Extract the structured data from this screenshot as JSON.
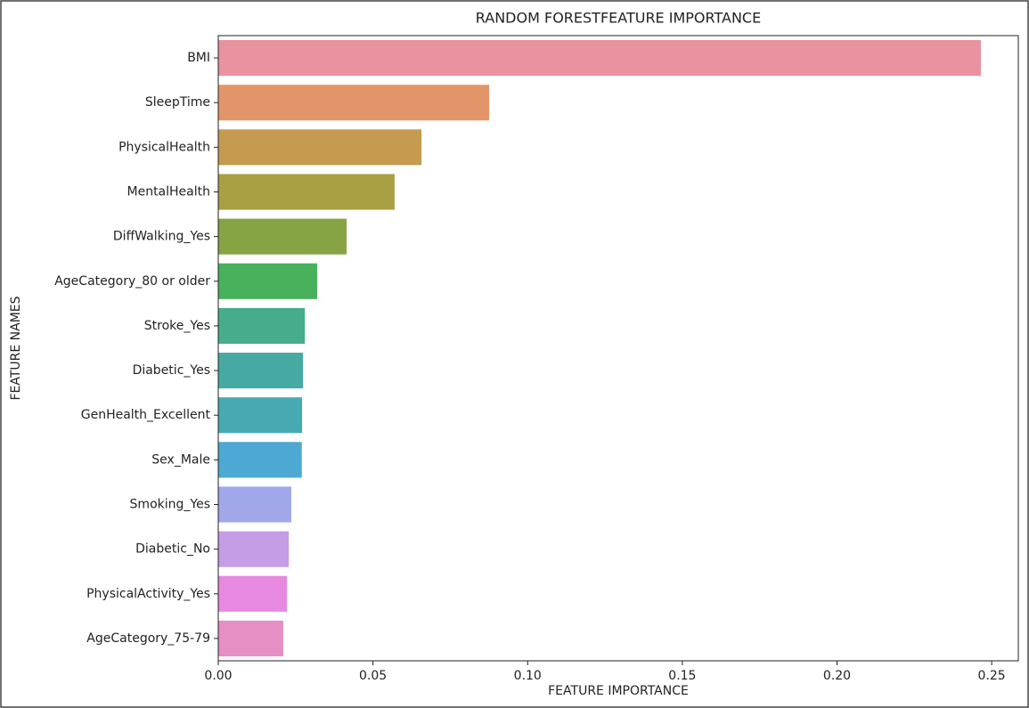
{
  "chart_data": {
    "type": "barh",
    "title": "RANDOM FORESTFEATURE IMPORTANCE",
    "x_label": "FEATURE IMPORTANCE",
    "y_label": "FEATURE NAMES",
    "categories": [
      "BMI",
      "SleepTime",
      "PhysicalHealth",
      "MentalHealth",
      "DiffWalking_Yes",
      "AgeCategory_80 or older",
      "Stroke_Yes",
      "Diabetic_Yes",
      "GenHealth_Excellent",
      "Sex_Male",
      "Smoking_Yes",
      "Diabetic_No",
      "PhysicalActivity_Yes",
      "AgeCategory_75-79"
    ],
    "values": [
      0.2465,
      0.0876,
      0.0657,
      0.057,
      0.0415,
      0.032,
      0.028,
      0.0274,
      0.0271,
      0.027,
      0.0236,
      0.0228,
      0.0222,
      0.021
    ],
    "colors": [
      "#e8939f",
      "#e3956a",
      "#c59b4f",
      "#a9a043",
      "#86a444",
      "#48b15c",
      "#46ac8b",
      "#46aaa2",
      "#47aab3",
      "#4da9d4",
      "#a0a8e9",
      "#c59ce6",
      "#e788e1",
      "#e68fc4"
    ],
    "xlim": [
      0,
      0.2586
    ],
    "xticks": [
      {
        "value": 0,
        "label": "0.00"
      },
      {
        "value": 0.05,
        "label": "0.05"
      },
      {
        "value": 0.1,
        "label": "0.10"
      },
      {
        "value": 0.15,
        "label": "0.15"
      },
      {
        "value": 0.2,
        "label": "0.20"
      },
      {
        "value": 0.25,
        "label": "0.25"
      }
    ]
  }
}
